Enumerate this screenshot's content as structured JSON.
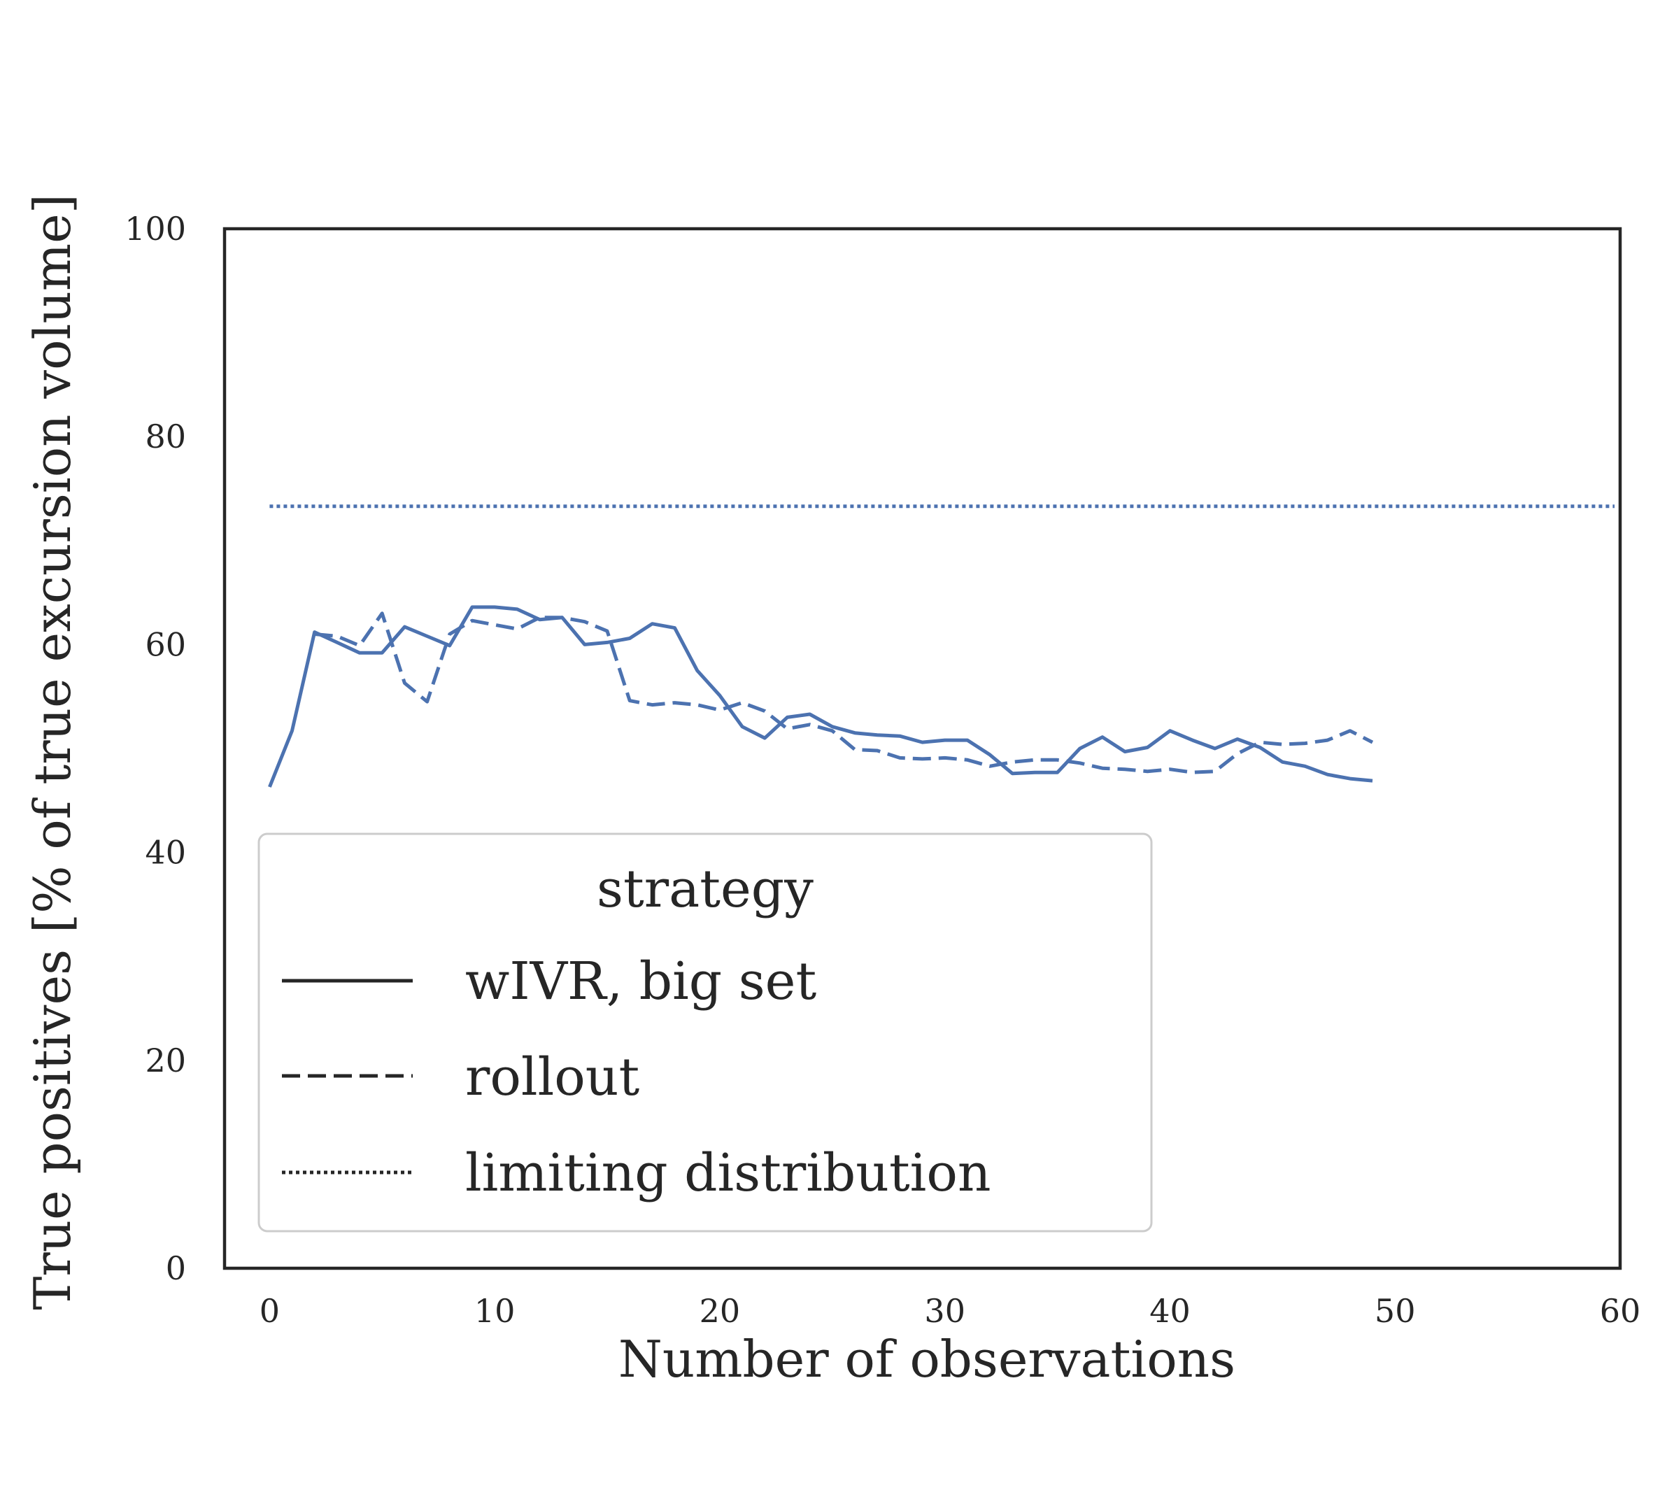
{
  "colors": {
    "series": "#4c72b0",
    "frame": "#262626",
    "legend_border": "#cccccc",
    "legend_handle": "#262626",
    "text": "#262626"
  },
  "chart_data": {
    "type": "line",
    "xlabel": "Number of observations",
    "ylabel": "True positives [% of true excursion volume]",
    "xlim": [
      -2,
      60
    ],
    "ylim": [
      0,
      100
    ],
    "xticks": [
      0,
      10,
      20,
      30,
      40,
      50,
      60
    ],
    "yticks": [
      0,
      20,
      40,
      60,
      80,
      100
    ],
    "grid": false,
    "legend": {
      "title": "strategy",
      "placement": "lower-left",
      "entries": [
        {
          "label": "wIVR, big set",
          "style": "solid"
        },
        {
          "label": "rollout",
          "style": "dashed"
        },
        {
          "label": "limiting distribution",
          "style": "dotted"
        }
      ]
    },
    "series": [
      {
        "name": "wIVR, big set",
        "style": "solid",
        "x": [
          0,
          1,
          2,
          3,
          4,
          5,
          6,
          7,
          8,
          9,
          10,
          11,
          12,
          13,
          14,
          15,
          16,
          17,
          18,
          19,
          20,
          21,
          22,
          23,
          24,
          25,
          26,
          27,
          28,
          29,
          30,
          31,
          32,
          33,
          34,
          35,
          36,
          37,
          38,
          39,
          40,
          41,
          42,
          43,
          44,
          45,
          46,
          47,
          48,
          49
        ],
        "y": [
          46.3,
          51.7,
          61.2,
          60.2,
          59.2,
          59.2,
          61.7,
          60.8,
          59.9,
          63.6,
          63.6,
          63.4,
          62.4,
          62.6,
          60.0,
          60.2,
          60.6,
          62.0,
          61.6,
          57.5,
          55.1,
          52.1,
          51.0,
          53.0,
          53.3,
          52.1,
          51.5,
          51.3,
          51.2,
          50.6,
          50.8,
          50.8,
          49.4,
          47.6,
          47.7,
          47.7,
          50.0,
          51.1,
          49.7,
          50.1,
          51.7,
          50.8,
          50.0,
          50.9,
          50.1,
          48.7,
          48.3,
          47.5,
          47.1,
          46.9
        ]
      },
      {
        "name": "rollout",
        "style": "dashed",
        "x": [
          2,
          3,
          4,
          5,
          6,
          7,
          8,
          9,
          10,
          11,
          12,
          13,
          14,
          15,
          16,
          17,
          18,
          19,
          20,
          21,
          22,
          23,
          24,
          25,
          26,
          27,
          28,
          29,
          30,
          31,
          32,
          33,
          34,
          35,
          36,
          37,
          38,
          39,
          40,
          41,
          42,
          43,
          44,
          45,
          46,
          47,
          48,
          49
        ],
        "y": [
          61.0,
          60.8,
          59.9,
          63.0,
          56.3,
          54.5,
          61.0,
          62.3,
          61.9,
          61.5,
          62.6,
          62.6,
          62.2,
          61.3,
          54.6,
          54.2,
          54.4,
          54.2,
          53.7,
          54.4,
          53.6,
          51.9,
          52.3,
          51.7,
          49.9,
          49.8,
          49.1,
          49.0,
          49.1,
          48.9,
          48.3,
          48.7,
          48.9,
          48.9,
          48.6,
          48.1,
          48.0,
          47.8,
          48.0,
          47.7,
          47.8,
          49.5,
          50.6,
          50.4,
          50.5,
          50.8,
          51.7,
          50.6
        ]
      },
      {
        "name": "limiting distribution",
        "style": "dotted",
        "x": [
          0,
          60
        ],
        "y": [
          73.3,
          73.3
        ]
      }
    ]
  }
}
